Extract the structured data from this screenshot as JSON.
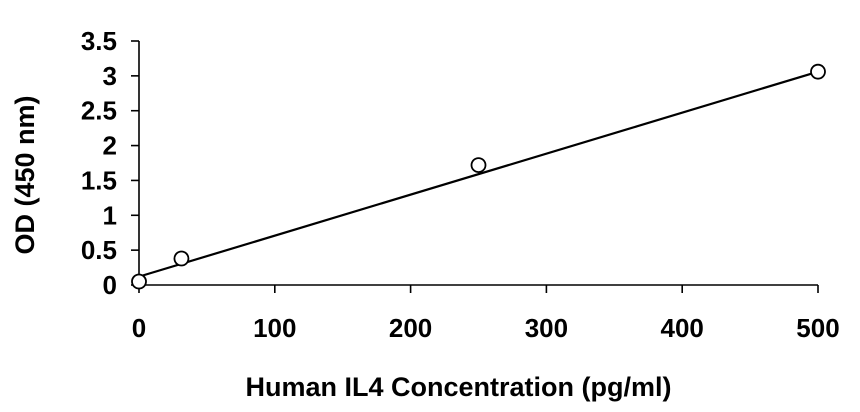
{
  "chart_data": {
    "type": "scatter",
    "title": "",
    "xlabel": "Human IL4 Concentration (pg/ml)",
    "ylabel": "OD (450 nm)",
    "xlim": [
      0,
      500
    ],
    "ylim": [
      0,
      3.5
    ],
    "x_ticks": [
      "0",
      "100",
      "200",
      "300",
      "400",
      "500"
    ],
    "y_ticks": [
      "0",
      "0.5",
      "1",
      "1.5",
      "2",
      "2.5",
      "3",
      "3.5"
    ],
    "grid": false,
    "legend": "none",
    "series": [
      {
        "marker": "open-circle",
        "x": [
          0,
          31.25,
          250,
          500
        ],
        "y": [
          0.05,
          0.38,
          1.72,
          3.06
        ]
      }
    ],
    "trendline": {
      "kind": "linear",
      "x": [
        0,
        500
      ],
      "y": [
        0.12,
        3.06
      ]
    },
    "colors": {
      "axis": "#000000",
      "marker": "#000000",
      "line": "#000000"
    }
  }
}
